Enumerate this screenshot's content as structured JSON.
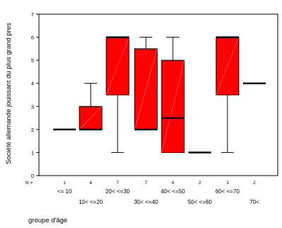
{
  "chart_data": {
    "type": "boxplot",
    "title": "",
    "ylabel": "Société allemande jouissant du plus grand pres",
    "xlabel": "groupe d'âge",
    "ylim": [
      0,
      7
    ],
    "yticks": [
      0,
      1,
      2,
      3,
      4,
      5,
      6,
      7
    ],
    "n_label": "N =",
    "box_color": "#ff0000",
    "categories": [
      "<= 10",
      "10< <=20",
      "20< <=30",
      "30< <=40",
      "40< <=50",
      "50< <=60",
      "60< <=70",
      "70<"
    ],
    "n": [
      "1",
      "4",
      "7",
      "7",
      "4",
      "2",
      "3",
      "2"
    ],
    "boxes": [
      {
        "min": 2,
        "q1": 2,
        "median": 2,
        "q3": 2,
        "max": 2
      },
      {
        "min": 2,
        "q1": 2,
        "median": 2,
        "q3": 3,
        "max": 4
      },
      {
        "min": 1,
        "q1": 3.5,
        "median": 6,
        "q3": 6,
        "max": 6
      },
      {
        "min": 2,
        "q1": 2,
        "median": 2,
        "q3": 5.5,
        "max": 6
      },
      {
        "min": 1,
        "q1": 1,
        "median": 2.5,
        "q3": 5,
        "max": 6
      },
      {
        "min": 1,
        "q1": 1,
        "median": 1,
        "q3": 1,
        "max": 1
      },
      {
        "min": 1,
        "q1": 3.5,
        "median": 6,
        "q3": 6,
        "max": 6
      },
      {
        "min": 4,
        "q1": 4,
        "median": 4,
        "q3": 4,
        "max": 4
      }
    ]
  }
}
